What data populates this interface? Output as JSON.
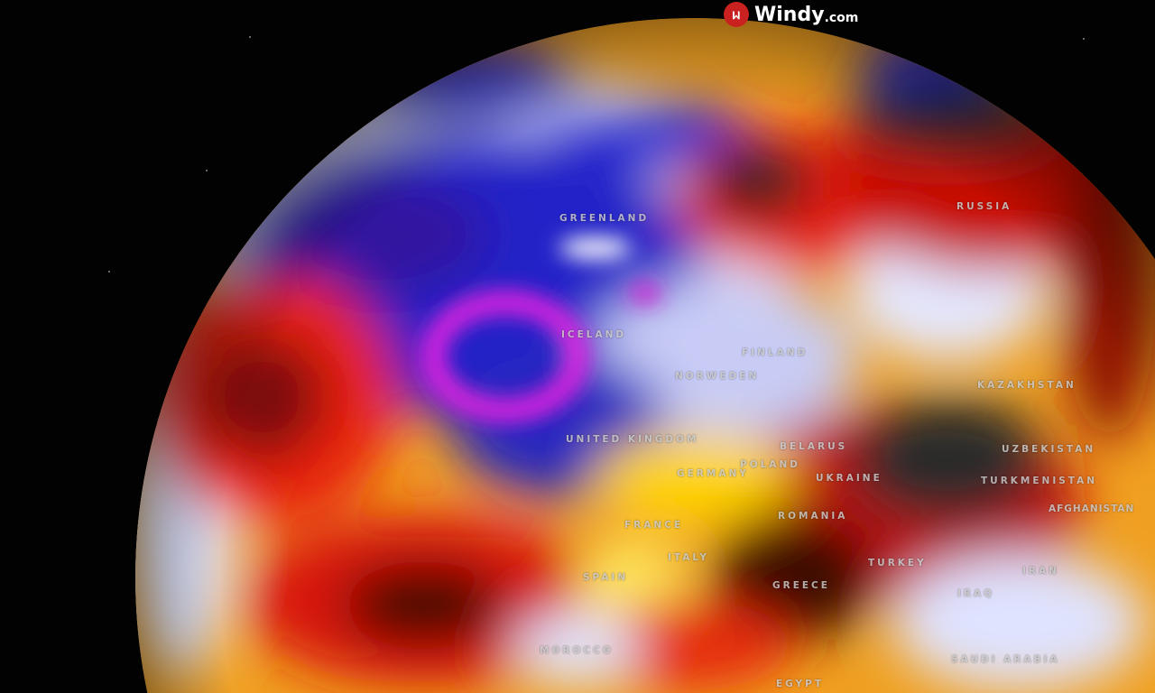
{
  "logo": {
    "brand": "Windy",
    "suffix": ".com",
    "icon": "windy-logo-icon"
  },
  "colors": {
    "cold": "#1a1acc",
    "cool": "#e8ecff",
    "warm": "#ffd400",
    "hot": "#e5160b",
    "extreme": "#2a2a2a",
    "low_pressure": "#e020e0"
  },
  "labels": {
    "greenland": "GREENLAND",
    "russia": "RUSSIA",
    "iceland": "ICELAND",
    "finland": "FINLAND",
    "norweden": "NORWEDEN",
    "united_kingdom": "UNITED KINGDOM",
    "belarus": "BELARUS",
    "poland": "POLAND",
    "germany": "GERMANY",
    "ukraine": "UKRAINE",
    "kazakhstan": "KAZAKHSTAN",
    "uzbekistan": "UZBEKISTAN",
    "turkmenistan": "TURKMENISTAN",
    "afghanistan": "AFGHANISTAN",
    "romania": "ROMANIA",
    "france": "FRANCE",
    "italy": "ITALY",
    "spain": "SPAIN",
    "greece": "GREECE",
    "turkey": "TURKEY",
    "iran": "IRAN",
    "iraq": "IRAQ",
    "morocco": "MOROCCO",
    "saudi_arabia": "SAUDI ARABIA",
    "egypt": "EGYPT"
  }
}
